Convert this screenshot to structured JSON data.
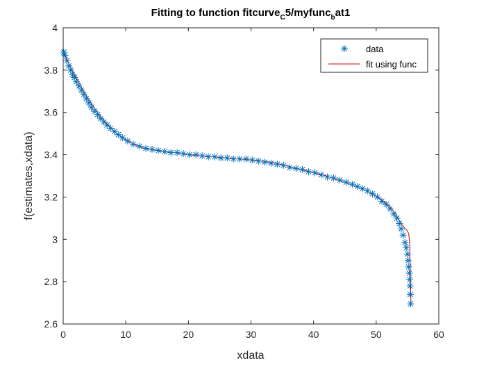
{
  "chart_data": {
    "type": "scatter",
    "title": {
      "main": "Fitting to function fitcurve",
      "sub1": "C",
      "mid": "5/myfunc",
      "sub2": "b",
      "end": "at1"
    },
    "xlabel": "xdata",
    "ylabel": "f(estimates,xdata)",
    "xlim": [
      0,
      60
    ],
    "ylim": [
      2.6,
      4.0
    ],
    "xticks": [
      "0",
      "10",
      "20",
      "30",
      "40",
      "50",
      "60"
    ],
    "yticks": [
      "2.6",
      "2.8",
      "3",
      "3.2",
      "3.4",
      "3.6",
      "3.8",
      "4"
    ],
    "xtick_values": [
      0,
      10,
      20,
      30,
      40,
      50,
      60
    ],
    "ytick_values": [
      2.6,
      2.8,
      3.0,
      3.2,
      3.4,
      3.6,
      3.8,
      4.0
    ],
    "grid": false,
    "legend": {
      "position": "top-right",
      "entries": [
        "data",
        "fit using func"
      ]
    },
    "series": [
      {
        "name": "data",
        "style": "marker",
        "color": "#0072BD",
        "x": [
          0.1,
          0.3,
          0.6,
          0.9,
          1.2,
          1.5,
          1.8,
          2.1,
          2.5,
          2.9,
          3.3,
          3.7,
          4.1,
          4.5,
          5.0,
          5.5,
          6.0,
          6.5,
          7.0,
          7.6,
          8.2,
          8.8,
          9.5,
          10.3,
          11.2,
          12.2,
          13.2,
          14.2,
          15.2,
          16.2,
          17.2,
          18.2,
          19.2,
          20.2,
          21.2,
          22.2,
          23.2,
          24.2,
          25.2,
          26.2,
          27.2,
          28.2,
          29.2,
          30.2,
          31.2,
          32.2,
          33.2,
          34.2,
          35.2,
          36.2,
          37.2,
          38.2,
          39.2,
          40.2,
          41.2,
          42.2,
          43.2,
          44.2,
          45.2,
          46.2,
          47.0,
          47.8,
          48.6,
          49.4,
          50.2,
          50.9,
          51.6,
          52.2,
          52.8,
          53.3,
          53.7,
          54.0,
          54.3,
          54.6,
          54.8,
          55.0,
          55.1,
          55.2,
          55.3,
          55.35,
          55.4,
          55.45,
          55.5
        ],
        "y": [
          3.885,
          3.87,
          3.845,
          3.82,
          3.8,
          3.78,
          3.765,
          3.745,
          3.725,
          3.705,
          3.685,
          3.665,
          3.645,
          3.625,
          3.605,
          3.59,
          3.57,
          3.555,
          3.54,
          3.525,
          3.51,
          3.495,
          3.48,
          3.465,
          3.45,
          3.44,
          3.43,
          3.425,
          3.42,
          3.415,
          3.41,
          3.41,
          3.405,
          3.4,
          3.4,
          3.395,
          3.39,
          3.39,
          3.385,
          3.385,
          3.38,
          3.38,
          3.38,
          3.375,
          3.37,
          3.365,
          3.36,
          3.355,
          3.35,
          3.34,
          3.335,
          3.33,
          3.32,
          3.315,
          3.305,
          3.295,
          3.29,
          3.28,
          3.27,
          3.26,
          3.25,
          3.24,
          3.23,
          3.215,
          3.2,
          3.18,
          3.165,
          3.145,
          3.12,
          3.1,
          3.075,
          3.05,
          3.02,
          2.985,
          2.96,
          2.93,
          2.9,
          2.87,
          2.84,
          2.81,
          2.78,
          2.74,
          2.695
        ]
      },
      {
        "name": "fit using func",
        "style": "line",
        "color": "#D40000",
        "x": [
          0,
          0.5,
          1,
          1.5,
          2,
          3,
          4,
          5,
          6,
          7,
          8,
          9,
          10,
          11,
          12,
          13,
          14,
          15,
          16,
          18,
          20,
          22,
          24,
          26,
          28,
          30,
          32,
          34,
          36,
          38,
          40,
          42,
          44,
          46,
          48,
          49,
          50,
          51,
          52,
          53,
          53.5,
          54,
          54.5,
          55,
          55.2,
          55.35,
          55.45,
          55.55
        ],
        "y": [
          3.89,
          3.855,
          3.825,
          3.795,
          3.77,
          3.715,
          3.665,
          3.62,
          3.58,
          3.545,
          3.515,
          3.49,
          3.47,
          3.455,
          3.44,
          3.43,
          3.425,
          3.42,
          3.415,
          3.41,
          3.4,
          3.395,
          3.39,
          3.385,
          3.38,
          3.375,
          3.37,
          3.36,
          3.345,
          3.33,
          3.315,
          3.3,
          3.28,
          3.26,
          3.235,
          3.22,
          3.205,
          3.185,
          3.16,
          3.125,
          3.1,
          3.075,
          3.055,
          3.04,
          3.025,
          2.98,
          2.84,
          2.7
        ]
      }
    ]
  }
}
